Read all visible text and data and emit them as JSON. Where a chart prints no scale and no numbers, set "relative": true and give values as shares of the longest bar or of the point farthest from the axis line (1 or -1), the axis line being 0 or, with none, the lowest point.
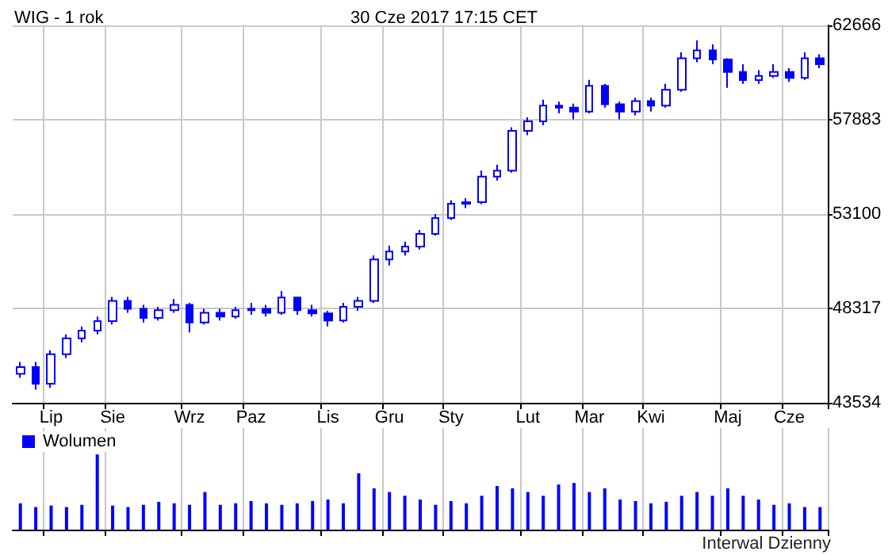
{
  "chart_data": [
    {
      "type": "candlestick",
      "title": "WIG - 1 rok",
      "subtitle": "30 Cze 2017 17:15 CET",
      "annotations": [
        "Interwal Dzienny"
      ],
      "color": "#0000ff",
      "grid": true,
      "categories": [
        null,
        null,
        "Lip",
        null,
        null,
        null,
        "Sie",
        null,
        null,
        null,
        null,
        "Wrz",
        null,
        null,
        null,
        "Paz",
        null,
        null,
        null,
        null,
        "Lis",
        null,
        null,
        null,
        "Gru",
        null,
        null,
        null,
        "Sty",
        null,
        null,
        null,
        null,
        "Lut",
        null,
        null,
        null,
        "Mar",
        null,
        null,
        null,
        "Kwi",
        null,
        null,
        null,
        null,
        "Maj",
        null,
        null,
        null,
        "Cze",
        null,
        null
      ],
      "ohlc": [
        [
          45000,
          45600,
          44800,
          45340
        ],
        [
          45340,
          45600,
          44200,
          44500
        ],
        [
          44500,
          46200,
          44300,
          46000
        ],
        [
          46000,
          47000,
          45800,
          46800
        ],
        [
          46800,
          47400,
          46600,
          47190
        ],
        [
          47190,
          47900,
          47000,
          47670
        ],
        [
          47670,
          48900,
          47500,
          48700
        ],
        [
          48700,
          48900,
          48100,
          48300
        ],
        [
          48300,
          48500,
          47600,
          47830
        ],
        [
          47830,
          48400,
          47700,
          48230
        ],
        [
          48230,
          48800,
          48100,
          48500
        ],
        [
          48500,
          48600,
          47100,
          47600
        ],
        [
          47600,
          48300,
          47500,
          48100
        ],
        [
          48100,
          48300,
          47700,
          47900
        ],
        [
          47900,
          48400,
          47800,
          48230
        ],
        [
          48230,
          48600,
          48000,
          48300
        ],
        [
          48300,
          48500,
          47900,
          48100
        ],
        [
          48100,
          49200,
          48000,
          48870
        ],
        [
          48870,
          48900,
          48000,
          48230
        ],
        [
          48230,
          48500,
          47900,
          48070
        ],
        [
          48070,
          48200,
          47400,
          47700
        ],
        [
          47700,
          48600,
          47600,
          48400
        ],
        [
          48400,
          48900,
          48200,
          48700
        ],
        [
          48700,
          51000,
          48600,
          50800
        ],
        [
          50800,
          51500,
          50500,
          51200
        ],
        [
          51200,
          51700,
          51000,
          51450
        ],
        [
          51450,
          52300,
          51300,
          52100
        ],
        [
          52100,
          53100,
          52000,
          52900
        ],
        [
          52900,
          53800,
          52800,
          53620
        ],
        [
          53620,
          53900,
          53400,
          53700
        ],
        [
          53700,
          55300,
          53600,
          55000
        ],
        [
          55000,
          55600,
          54800,
          55300
        ],
        [
          55300,
          57500,
          55200,
          57320
        ],
        [
          57320,
          58000,
          57100,
          57800
        ],
        [
          57800,
          58900,
          57600,
          58600
        ],
        [
          58600,
          58800,
          58200,
          58500
        ],
        [
          58500,
          58700,
          57900,
          58300
        ],
        [
          58300,
          59900,
          58200,
          59600
        ],
        [
          59600,
          59700,
          58500,
          58670
        ],
        [
          58670,
          58800,
          57900,
          58300
        ],
        [
          58300,
          59000,
          58100,
          58830
        ],
        [
          58830,
          59000,
          58300,
          58600
        ],
        [
          58600,
          59700,
          58500,
          59400
        ],
        [
          59400,
          61300,
          59300,
          61000
        ],
        [
          61000,
          61900,
          60800,
          61400
        ],
        [
          61400,
          61700,
          60700,
          60940
        ],
        [
          60940,
          61000,
          59500,
          60300
        ],
        [
          60300,
          60700,
          59700,
          59890
        ],
        [
          59890,
          60400,
          59700,
          60100
        ],
        [
          60100,
          60700,
          60000,
          60300
        ],
        [
          60300,
          60500,
          59800,
          60000
        ],
        [
          60000,
          61300,
          59900,
          61000
        ],
        [
          61000,
          61200,
          60500,
          60700
        ]
      ],
      "ylim": [
        43534,
        62666
      ],
      "yticks": [
        43534,
        48317,
        53100,
        57883,
        62666
      ]
    },
    {
      "type": "bar",
      "relative": true,
      "legend": "top left",
      "grid": "x",
      "categories": [
        null,
        null,
        null,
        null,
        null,
        null,
        null,
        null,
        null,
        null,
        null,
        null,
        null,
        null,
        null,
        null,
        null,
        null,
        null,
        null,
        null,
        null,
        null,
        null,
        null,
        null,
        null,
        null,
        null,
        null,
        null,
        null,
        null,
        null,
        null,
        null,
        null,
        null,
        null,
        null,
        null,
        null,
        null,
        null,
        null,
        null,
        null,
        null,
        null,
        null,
        null,
        null,
        null
      ],
      "series": [
        {
          "name": "Wolumen",
          "color": "#0000ff",
          "values": [
            0.35,
            0.3,
            0.32,
            0.3,
            0.33,
            1.0,
            0.32,
            0.3,
            0.33,
            0.37,
            0.35,
            0.33,
            0.5,
            0.33,
            0.35,
            0.38,
            0.35,
            0.33,
            0.35,
            0.38,
            0.4,
            0.35,
            0.75,
            0.55,
            0.5,
            0.45,
            0.4,
            0.33,
            0.38,
            0.35,
            0.45,
            0.58,
            0.55,
            0.5,
            0.45,
            0.6,
            0.62,
            0.5,
            0.55,
            0.4,
            0.38,
            0.35,
            0.37,
            0.45,
            0.5,
            0.45,
            0.55,
            0.45,
            0.4,
            0.33,
            0.35,
            0.3,
            0.3
          ]
        }
      ]
    }
  ]
}
